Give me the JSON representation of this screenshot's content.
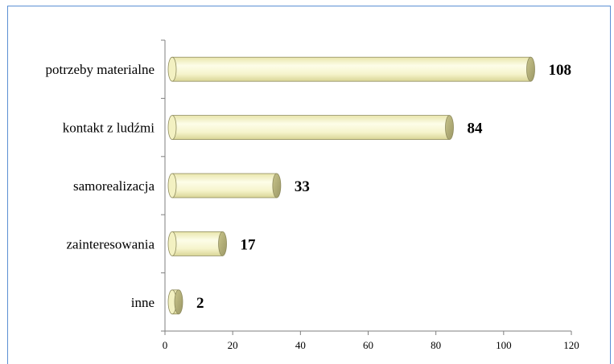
{
  "chart_data": {
    "type": "bar",
    "orientation": "horizontal",
    "categories": [
      "potrzeby materialne",
      "kontakt z ludźmi",
      "samorealizacja",
      "zainteresowania",
      "inne"
    ],
    "values": [
      108,
      84,
      33,
      17,
      2
    ],
    "data_labels": [
      "108",
      "84",
      "33",
      "17",
      "2"
    ],
    "xlim": [
      0,
      120
    ],
    "x_ticks": [
      0,
      20,
      40,
      60,
      80,
      100,
      120
    ],
    "x_tick_labels": [
      "0",
      "20",
      "40",
      "60",
      "80",
      "100",
      "120"
    ],
    "bar_style": "3d-cylinder",
    "bar_color": "#f3f2c8",
    "bar_edge_color": "#8f8c5e",
    "grid": false,
    "legend": "none",
    "frame_color": "#5b8fd3"
  }
}
